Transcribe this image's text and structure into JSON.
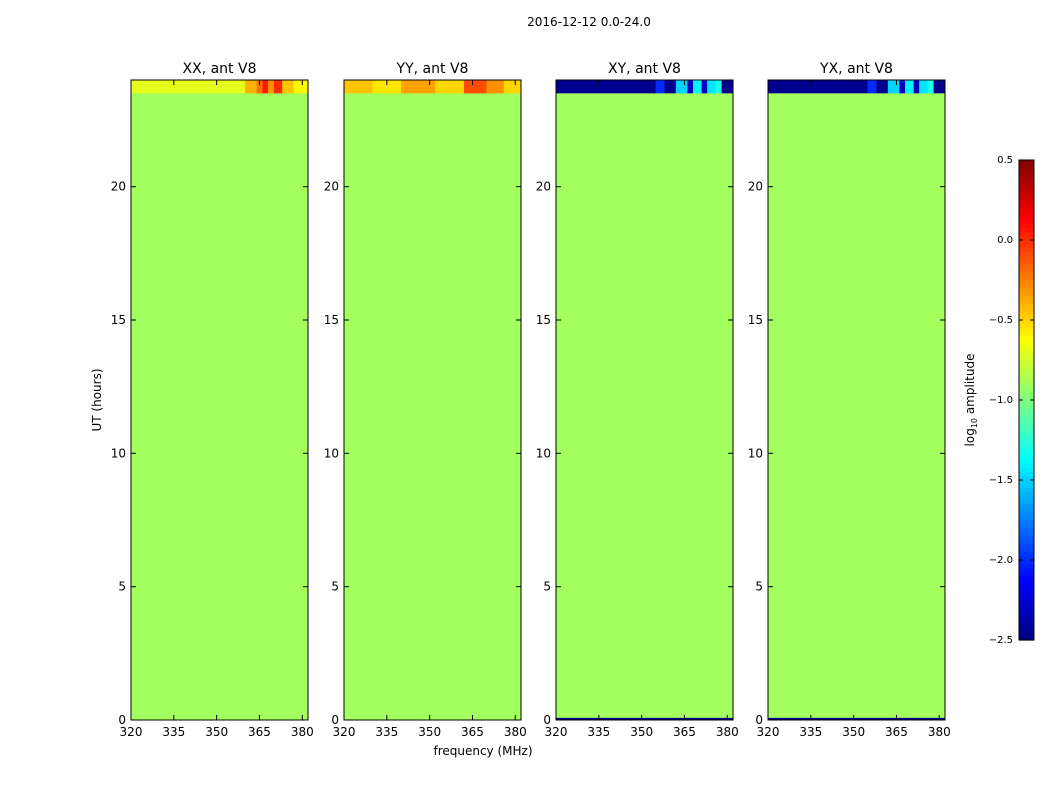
{
  "figure": {
    "suptitle": "2016-12-12 0.0-24.0",
    "ylabel": "UT (hours)",
    "xlabel": "frequency (MHz)"
  },
  "chart_data": [
    {
      "type": "heatmap",
      "title": "XX, ant V8",
      "xlim": [
        320,
        382
      ],
      "ylim": [
        0,
        24
      ],
      "xticks": [
        "320",
        "335",
        "350",
        "365",
        "380"
      ],
      "xtick_values": [
        320,
        335,
        350,
        365,
        380
      ],
      "yticks": [
        "0",
        "5",
        "10",
        "15",
        "20"
      ],
      "ytick_values": [
        0,
        5,
        10,
        15,
        20
      ],
      "background_log10_amplitude": -0.9,
      "active_rows": [
        {
          "ut_start": 23.5,
          "ut_end": 24.0,
          "segments": [
            {
              "f_start": 320,
              "f_end": 360,
              "log10_amplitude": -0.7
            },
            {
              "f_start": 360,
              "f_end": 364,
              "log10_amplitude": -0.4
            },
            {
              "f_start": 364,
              "f_end": 366,
              "log10_amplitude": -0.2
            },
            {
              "f_start": 366,
              "f_end": 368,
              "log10_amplitude": 0.05
            },
            {
              "f_start": 368,
              "f_end": 370,
              "log10_amplitude": -0.3
            },
            {
              "f_start": 370,
              "f_end": 373,
              "log10_amplitude": 0.0
            },
            {
              "f_start": 373,
              "f_end": 377,
              "log10_amplitude": -0.45
            },
            {
              "f_start": 377,
              "f_end": 382,
              "log10_amplitude": -0.6
            }
          ]
        }
      ]
    },
    {
      "type": "heatmap",
      "title": "YY, ant V8",
      "xlim": [
        320,
        382
      ],
      "ylim": [
        0,
        24
      ],
      "xticks": [
        "320",
        "335",
        "350",
        "365",
        "380"
      ],
      "xtick_values": [
        320,
        335,
        350,
        365,
        380
      ],
      "yticks": [
        "0",
        "5",
        "10",
        "15",
        "20"
      ],
      "ytick_values": [
        0,
        5,
        10,
        15,
        20
      ],
      "background_log10_amplitude": -0.9,
      "active_rows": [
        {
          "ut_start": 23.5,
          "ut_end": 24.0,
          "segments": [
            {
              "f_start": 320,
              "f_end": 330,
              "log10_amplitude": -0.45
            },
            {
              "f_start": 330,
              "f_end": 340,
              "log10_amplitude": -0.55
            },
            {
              "f_start": 340,
              "f_end": 352,
              "log10_amplitude": -0.35
            },
            {
              "f_start": 352,
              "f_end": 362,
              "log10_amplitude": -0.5
            },
            {
              "f_start": 362,
              "f_end": 370,
              "log10_amplitude": -0.1
            },
            {
              "f_start": 370,
              "f_end": 376,
              "log10_amplitude": -0.3
            },
            {
              "f_start": 376,
              "f_end": 382,
              "log10_amplitude": -0.5
            }
          ]
        }
      ]
    },
    {
      "type": "heatmap",
      "title": "XY, ant V8",
      "xlim": [
        320,
        382
      ],
      "ylim": [
        0,
        24
      ],
      "xticks": [
        "320",
        "335",
        "350",
        "365",
        "380"
      ],
      "xtick_values": [
        320,
        335,
        350,
        365,
        380
      ],
      "yticks": [
        "0",
        "5",
        "10",
        "15",
        "20"
      ],
      "ytick_values": [
        0,
        5,
        10,
        15,
        20
      ],
      "background_log10_amplitude": -0.9,
      "active_rows": [
        {
          "ut_start": 23.5,
          "ut_end": 24.0,
          "segments": [
            {
              "f_start": 320,
              "f_end": 355,
              "log10_amplitude": -2.45
            },
            {
              "f_start": 355,
              "f_end": 358,
              "log10_amplitude": -2.0
            },
            {
              "f_start": 358,
              "f_end": 362,
              "log10_amplitude": -2.45
            },
            {
              "f_start": 362,
              "f_end": 366,
              "log10_amplitude": -1.5
            },
            {
              "f_start": 366,
              "f_end": 368,
              "log10_amplitude": -2.3
            },
            {
              "f_start": 368,
              "f_end": 371,
              "log10_amplitude": -1.4
            },
            {
              "f_start": 371,
              "f_end": 373,
              "log10_amplitude": -2.3
            },
            {
              "f_start": 373,
              "f_end": 376,
              "log10_amplitude": -1.45
            },
            {
              "f_start": 376,
              "f_end": 378,
              "log10_amplitude": -1.3
            },
            {
              "f_start": 378,
              "f_end": 382,
              "log10_amplitude": -2.45
            }
          ]
        },
        {
          "ut_start": 0.0,
          "ut_end": 0.08,
          "segments": [
            {
              "f_start": 320,
              "f_end": 382,
              "log10_amplitude": -2.45
            }
          ]
        }
      ]
    },
    {
      "type": "heatmap",
      "title": "YX, ant V8",
      "xlim": [
        320,
        382
      ],
      "ylim": [
        0,
        24
      ],
      "xticks": [
        "320",
        "335",
        "350",
        "365",
        "380"
      ],
      "xtick_values": [
        320,
        335,
        350,
        365,
        380
      ],
      "yticks": [
        "0",
        "5",
        "10",
        "15",
        "20"
      ],
      "ytick_values": [
        0,
        5,
        10,
        15,
        20
      ],
      "background_log10_amplitude": -0.9,
      "active_rows": [
        {
          "ut_start": 23.5,
          "ut_end": 24.0,
          "segments": [
            {
              "f_start": 320,
              "f_end": 355,
              "log10_amplitude": -2.45
            },
            {
              "f_start": 355,
              "f_end": 358,
              "log10_amplitude": -2.0
            },
            {
              "f_start": 358,
              "f_end": 362,
              "log10_amplitude": -2.45
            },
            {
              "f_start": 362,
              "f_end": 366,
              "log10_amplitude": -1.5
            },
            {
              "f_start": 366,
              "f_end": 368,
              "log10_amplitude": -2.3
            },
            {
              "f_start": 368,
              "f_end": 371,
              "log10_amplitude": -1.4
            },
            {
              "f_start": 371,
              "f_end": 373,
              "log10_amplitude": -2.3
            },
            {
              "f_start": 373,
              "f_end": 376,
              "log10_amplitude": -1.45
            },
            {
              "f_start": 376,
              "f_end": 378,
              "log10_amplitude": -1.3
            },
            {
              "f_start": 378,
              "f_end": 382,
              "log10_amplitude": -2.45
            }
          ]
        },
        {
          "ut_start": 0.0,
          "ut_end": 0.08,
          "segments": [
            {
              "f_start": 320,
              "f_end": 382,
              "log10_amplitude": -2.45
            }
          ]
        }
      ]
    }
  ],
  "colorbar": {
    "label_prefix": "log",
    "label_subscript": "10",
    "label_suffix": " amplitude",
    "colormap": "jet",
    "vmin": -2.5,
    "vmax": 0.5,
    "ticks": [
      "0.5",
      "0.0",
      "−0.5",
      "−1.0",
      "−1.5",
      "−2.0",
      "−2.5"
    ],
    "tick_values": [
      0.5,
      0.0,
      -0.5,
      -1.0,
      -1.5,
      -2.0,
      -2.5
    ]
  }
}
